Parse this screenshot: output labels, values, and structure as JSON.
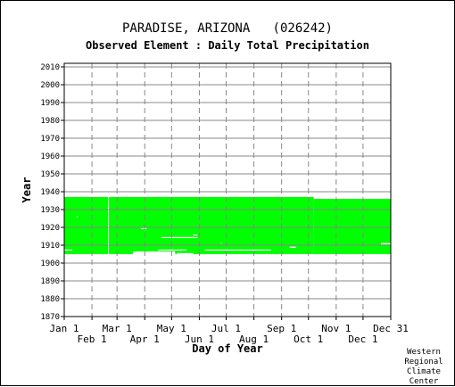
{
  "chart_data": {
    "type": "heatmap",
    "title": "PARADISE, ARIZONA   (026242)",
    "subtitle": "Observed Element : Daily Total Precipitation",
    "xlabel": "Day of Year",
    "ylabel": "Year",
    "xlim": [
      1,
      366
    ],
    "ylim": [
      1870,
      2012
    ],
    "x_ticks_top_row": [
      {
        "label": "Jan 1",
        "day": 1
      },
      {
        "label": "Mar 1",
        "day": 60
      },
      {
        "label": "May 1",
        "day": 121
      },
      {
        "label": "Jul 1",
        "day": 182
      },
      {
        "label": "Sep 1",
        "day": 244
      },
      {
        "label": "Nov 1",
        "day": 305
      },
      {
        "label": "Dec 31",
        "day": 366
      }
    ],
    "x_ticks_bottom_row": [
      {
        "label": "Feb 1",
        "day": 32
      },
      {
        "label": "Apr 1",
        "day": 91
      },
      {
        "label": "Jun 1",
        "day": 152
      },
      {
        "label": "Aug 1",
        "day": 213
      },
      {
        "label": "Oct 1",
        "day": 274
      },
      {
        "label": "Dec 1",
        "day": 335
      }
    ],
    "y_ticks": [
      "1870",
      "1880",
      "1890",
      "1900",
      "1910",
      "1920",
      "1930",
      "1940",
      "1950",
      "1960",
      "1970",
      "1980",
      "1990",
      "2000",
      "2010"
    ],
    "grid": true,
    "data_color": "#00ff00",
    "coverage": [
      {
        "day_start": 1,
        "day_end": 280,
        "year_start": 1905,
        "year_end": 1937
      },
      {
        "day_start": 280,
        "day_end": 366,
        "year_start": 1905,
        "year_end": 1936
      }
    ],
    "gaps": [
      {
        "day_start": 1,
        "day_end": 10,
        "year_start": 1907,
        "year_end": 1907.6
      },
      {
        "day_start": 15,
        "day_end": 16,
        "year_start": 1925.5,
        "year_end": 1926.5
      },
      {
        "day_start": 50,
        "day_end": 51,
        "year_start": 1905,
        "year_end": 1937
      },
      {
        "day_start": 78,
        "day_end": 125,
        "year_start": 1905,
        "year_end": 1906.5
      },
      {
        "day_start": 87,
        "day_end": 93,
        "year_start": 1919,
        "year_end": 1919.6
      },
      {
        "day_start": 106,
        "day_end": 138,
        "year_start": 1907,
        "year_end": 1907.6
      },
      {
        "day_start": 110,
        "day_end": 150,
        "year_start": 1914,
        "year_end": 1914.6
      },
      {
        "day_start": 127,
        "day_end": 145,
        "year_start": 1905,
        "year_end": 1905.6
      },
      {
        "day_start": 145,
        "day_end": 150,
        "year_start": 1915.5,
        "year_end": 1916
      },
      {
        "day_start": 158,
        "day_end": 232,
        "year_start": 1907,
        "year_end": 1907.6
      },
      {
        "day_start": 176,
        "day_end": 177,
        "year_start": 1911,
        "year_end": 1911.6
      },
      {
        "day_start": 225,
        "day_end": 236,
        "year_start": 1903.5,
        "year_end": 1904.5
      },
      {
        "day_start": 253,
        "day_end": 260,
        "year_start": 1908.5,
        "year_end": 1909.2
      },
      {
        "day_start": 355,
        "day_end": 366,
        "year_start": 1910.5,
        "year_end": 1911.2
      }
    ]
  },
  "credit": [
    "Western",
    "Regional",
    "Climate",
    "Center"
  ]
}
